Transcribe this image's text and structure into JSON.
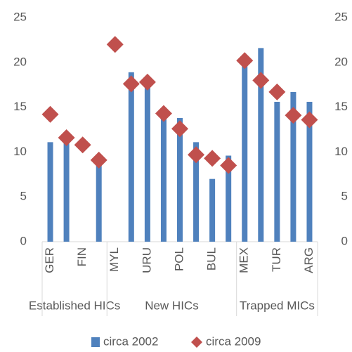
{
  "chart_data": {
    "type": "bar",
    "categories": [
      "GER",
      null,
      "FIN",
      null,
      "MYL",
      null,
      "URU",
      null,
      "POL",
      null,
      "BUL",
      null,
      "MEX",
      null,
      "TUR",
      null,
      "ARG"
    ],
    "groups": [
      {
        "name": "Established HICs",
        "size": 4
      },
      {
        "name": "New HICs",
        "size": 8
      },
      {
        "name": "Trapped MICs",
        "size": 5
      }
    ],
    "series": [
      {
        "name": "circa 2002",
        "type": "bar",
        "color": "#4f81bd",
        "values": [
          11.1,
          11.5,
          null,
          8.9,
          null,
          18.9,
          17.7,
          14.0,
          13.8,
          11.1,
          7.0,
          9.6,
          20.0,
          21.6,
          15.6,
          16.7,
          15.6
        ]
      },
      {
        "name": "circa 2009",
        "type": "marker",
        "axis": "y2",
        "color": "#c0504d",
        "values": [
          14.2,
          11.6,
          10.8,
          9.1,
          22.0,
          17.6,
          17.8,
          14.3,
          12.6,
          9.7,
          9.3,
          8.5,
          20.2,
          18.0,
          16.7,
          14.1,
          13.6
        ]
      }
    ],
    "ylim": [
      0,
      25
    ],
    "yticks": [
      0,
      5,
      10,
      15,
      20,
      25
    ],
    "y2lim": [
      0,
      25
    ],
    "y2ticks": [
      0,
      5,
      10,
      15,
      20,
      25
    ],
    "grid": false,
    "legend": "bottom"
  }
}
